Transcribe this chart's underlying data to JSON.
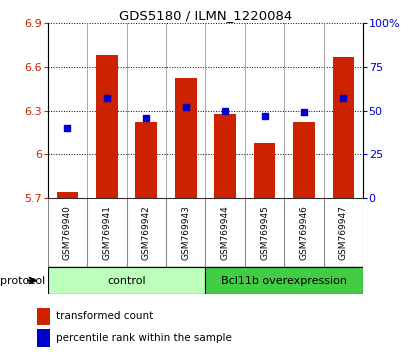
{
  "title": "GDS5180 / ILMN_1220084",
  "samples": [
    "GSM769940",
    "GSM769941",
    "GSM769942",
    "GSM769943",
    "GSM769944",
    "GSM769945",
    "GSM769946",
    "GSM769947"
  ],
  "transformed_counts": [
    5.74,
    6.68,
    6.22,
    6.52,
    6.28,
    6.08,
    6.22,
    6.67
  ],
  "percentile_ranks": [
    40,
    57,
    46,
    52,
    50,
    47,
    49,
    57
  ],
  "ylim_left": [
    5.7,
    6.9
  ],
  "ylim_right": [
    0,
    100
  ],
  "yticks_left": [
    5.7,
    6.0,
    6.3,
    6.6,
    6.9
  ],
  "ytick_labels_left": [
    "5.7",
    "6",
    "6.3",
    "6.6",
    "6.9"
  ],
  "yticks_right": [
    0,
    25,
    50,
    75,
    100
  ],
  "ytick_labels_right": [
    "0",
    "25",
    "50",
    "75",
    "100%"
  ],
  "bar_color": "#cc2200",
  "dot_color": "#0000cc",
  "bar_width": 0.55,
  "groups": [
    {
      "label": "control",
      "start": 0,
      "end": 3,
      "color": "#bbffbb"
    },
    {
      "label": "Bcl11b overexpression",
      "start": 4,
      "end": 7,
      "color": "#44cc44"
    }
  ],
  "group_row_label": "protocol",
  "legend_bar_label": "transformed count",
  "legend_dot_label": "percentile rank within the sample",
  "grid_color": "black",
  "background_color": "#ffffff",
  "tick_label_color_left": "#cc2200",
  "tick_label_color_right": "#0000cc",
  "sample_bg_color": "#cccccc",
  "sample_border_color": "#888888"
}
